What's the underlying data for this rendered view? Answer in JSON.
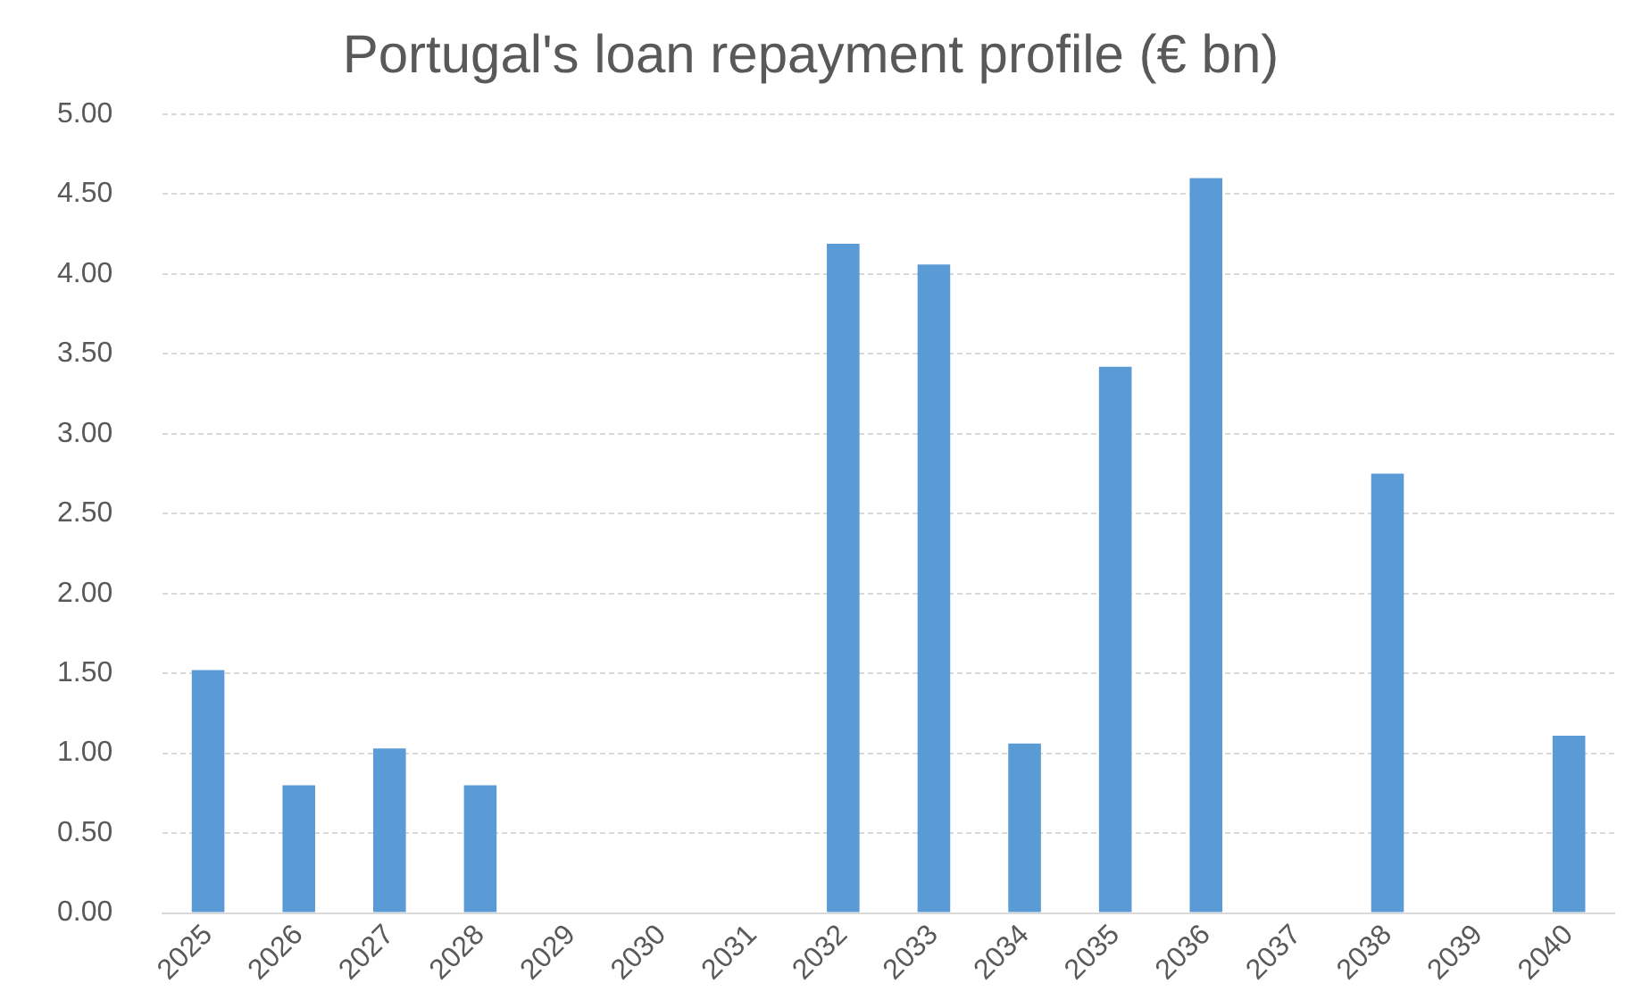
{
  "chart_data": {
    "type": "bar",
    "title": "Portugal's loan repayment profile (€ bn)",
    "categories": [
      "2025",
      "2026",
      "2027",
      "2028",
      "2029",
      "2030",
      "2031",
      "2032",
      "2033",
      "2034",
      "2035",
      "2036",
      "2037",
      "2038",
      "2039",
      "2040"
    ],
    "values": [
      1.52,
      0.8,
      1.03,
      0.8,
      0,
      0,
      0,
      4.19,
      4.06,
      1.06,
      3.42,
      4.6,
      0,
      2.75,
      0,
      1.11
    ],
    "color": "#5b9bd5",
    "ylim": [
      0,
      5
    ],
    "yticks": [
      {
        "value": 0,
        "label": "0.00"
      },
      {
        "value": 0.5,
        "label": "0.50"
      },
      {
        "value": 1,
        "label": "1.00"
      },
      {
        "value": 1.5,
        "label": "1.50"
      },
      {
        "value": 2,
        "label": "2.00"
      },
      {
        "value": 2.5,
        "label": "2.50"
      },
      {
        "value": 3,
        "label": "3.00"
      },
      {
        "value": 3.5,
        "label": "3.50"
      },
      {
        "value": 4,
        "label": "4.00"
      },
      {
        "value": 4.5,
        "label": "4.50"
      },
      {
        "value": 5,
        "label": "5.00"
      }
    ],
    "grid": "y"
  }
}
